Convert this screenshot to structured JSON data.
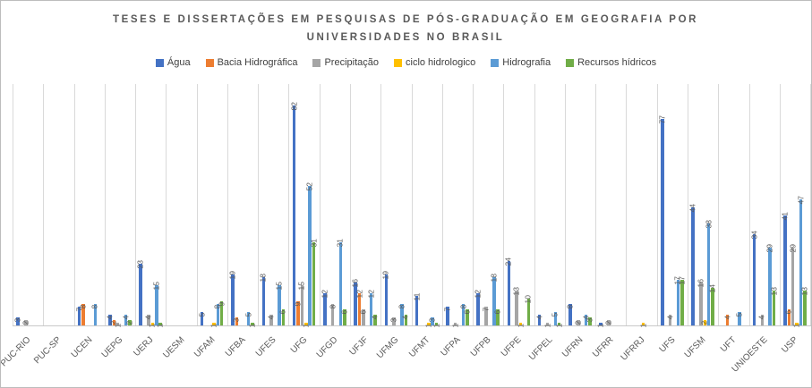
{
  "chart_data": {
    "type": "bar",
    "title": "TESES E DISSERTAÇÕES EM PESQUISAS DE PÓS-GRADUAÇÃO EM GEOGRAFIA POR UNIVERSIDADES NO BRASIL",
    "categories": [
      "PUC-RIO",
      "PUC-SP",
      "UCEN",
      "UEPG",
      "UERJ",
      "UESM",
      "UFAM",
      "UFBA",
      "UFES",
      "UFG",
      "UFGD",
      "UFJF",
      "UFMG",
      "UFMT",
      "UFPA",
      "UFPB",
      "UFPE",
      "UFPEL",
      "UFRN",
      "UFRR",
      "UFRRJ",
      "UFS",
      "UFSM",
      "UFT",
      "UNIOESTE",
      "USP"
    ],
    "series": [
      {
        "name": "Água",
        "color": "#4472C4",
        "values": [
          3,
          null,
          7,
          4,
          23,
          null,
          5,
          19,
          18,
          82,
          12,
          16,
          19,
          11,
          7,
          12,
          24,
          4,
          8,
          1,
          null,
          77,
          44,
          null,
          34,
          41
        ]
      },
      {
        "name": "Bacia Hidrográfica",
        "color": "#ED7D31",
        "values": [
          null,
          null,
          8,
          2,
          null,
          null,
          null,
          3,
          null,
          9,
          null,
          12,
          null,
          null,
          null,
          null,
          null,
          null,
          null,
          null,
          null,
          null,
          null,
          4,
          null,
          6
        ]
      },
      {
        "name": "Precipitação",
        "color": "#A5A5A5",
        "values": [
          2,
          null,
          null,
          1,
          4,
          null,
          null,
          null,
          4,
          15,
          8,
          6,
          3,
          null,
          1,
          7,
          13,
          1,
          2,
          2,
          null,
          4,
          16,
          null,
          4,
          29
        ]
      },
      {
        "name": "ciclo hidrologico",
        "color": "#FFC000",
        "values": [
          null,
          null,
          null,
          null,
          1,
          null,
          1,
          null,
          null,
          1,
          null,
          null,
          null,
          1,
          null,
          null,
          1,
          null,
          null,
          null,
          1,
          null,
          2,
          null,
          null,
          1
        ]
      },
      {
        "name": "Hidrografia",
        "color": "#5B9BD5",
        "values": [
          null,
          null,
          8,
          4,
          15,
          null,
          8,
          5,
          15,
          52,
          31,
          12,
          8,
          3,
          8,
          18,
          null,
          5,
          4,
          null,
          null,
          17,
          38,
          5,
          29,
          47
        ]
      },
      {
        "name": "Recursos hídricos",
        "color": "#70AD47",
        "values": [
          null,
          null,
          null,
          2,
          1,
          null,
          9,
          1,
          6,
          31,
          6,
          4,
          4,
          1,
          6,
          6,
          10,
          1,
          3,
          null,
          null,
          17,
          14,
          null,
          13,
          13
        ]
      }
    ],
    "ylim": [
      0,
      90
    ],
    "grid": "vertical",
    "legend_position": "top",
    "data_labels": "rotated-90-outside-end"
  }
}
